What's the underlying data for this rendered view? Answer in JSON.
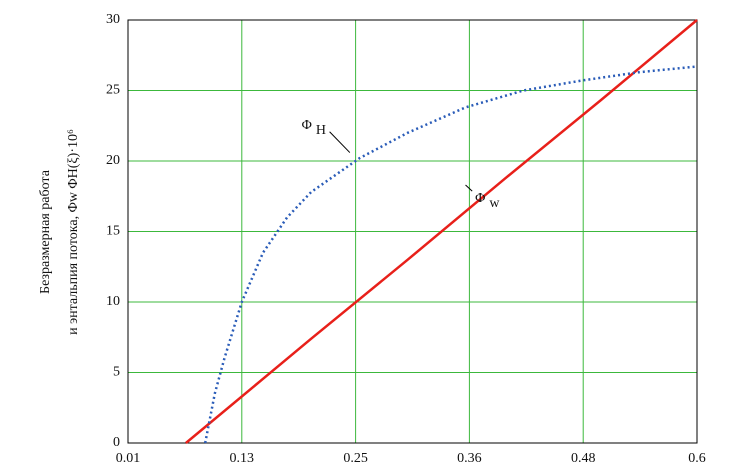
{
  "chart_data": {
    "type": "line",
    "ylabel": [
      "Безразмерная работа",
      "и энтальпия потока,  Φw   ΦH(ξ)·10⁶"
    ],
    "xlim": [
      0.01,
      0.6
    ],
    "xticks": [
      0.01,
      {
        "value": 0.128,
        "label": "0.13"
      },
      {
        "value": 0.246,
        "label": "0.25"
      },
      {
        "value": 0.364,
        "label": "0.36"
      },
      {
        "value": 0.482,
        "label": "0.48"
      },
      0.6
    ],
    "ylim": [
      0,
      30
    ],
    "yticks": [
      0,
      5,
      10,
      15,
      20,
      25,
      30
    ],
    "grid": true,
    "grid_color": "#3cb83c",
    "series": [
      {
        "color": "#e8201a",
        "dashed": false,
        "x": [
          0.07,
          0.2,
          0.3,
          0.4,
          0.5,
          0.6
        ],
        "values": [
          0,
          7.4,
          13,
          18.7,
          24.3,
          30
        ]
      },
      {
        "color": "#2a5cb8",
        "dashed": true,
        "x": [
          0.09,
          0.1,
          0.11,
          0.128,
          0.15,
          0.175,
          0.2,
          0.25,
          0.3,
          0.36,
          0.42,
          0.48,
          0.54,
          0.6
        ],
        "values": [
          0,
          3.5,
          6,
          10,
          13.5,
          16,
          17.8,
          20.2,
          22,
          23.8,
          25,
          25.7,
          26.3,
          26.7
        ]
      }
    ],
    "annotations": [
      {
        "symbol": "Φ",
        "sub": "H",
        "x": 0.19,
        "y": 22.5,
        "to_x": 0.24,
        "to_y": 20.6
      },
      {
        "symbol": "Φ",
        "sub": "w",
        "x": 0.37,
        "y": 17.3,
        "to_x": 0.36,
        "to_y": 18.3
      }
    ]
  }
}
